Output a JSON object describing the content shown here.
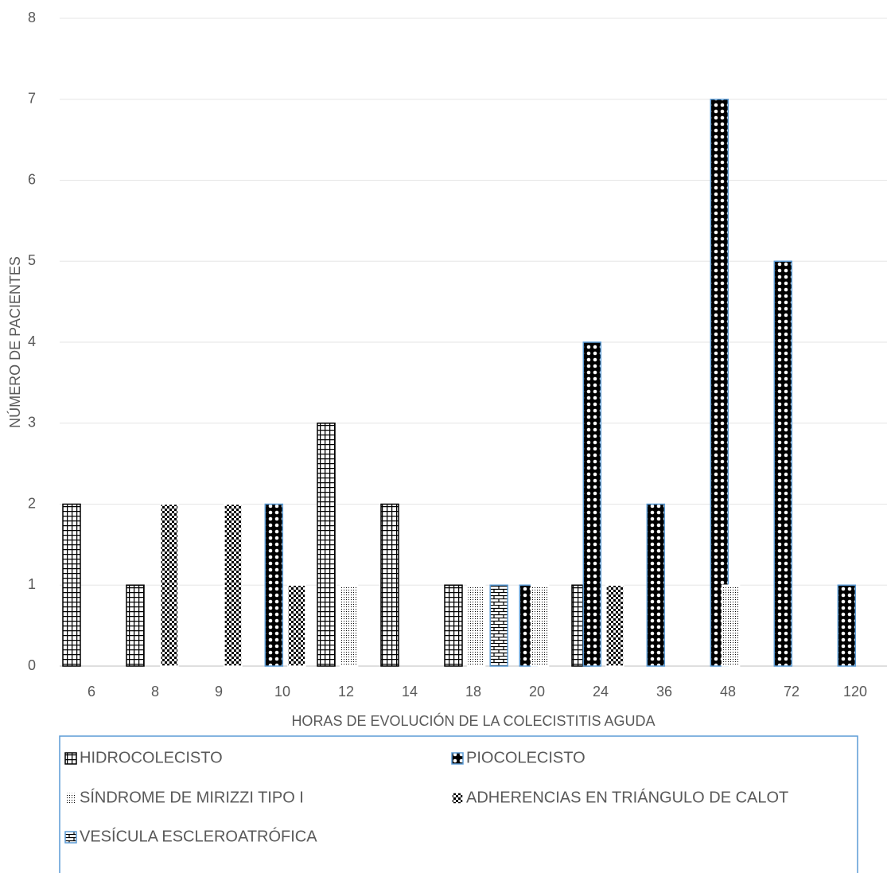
{
  "chart_data": {
    "type": "bar",
    "x_label": "HORAS DE EVOLUCIÓN DE LA COLECISTITIS AGUDA",
    "y_label": "NÚMERO DE PACIENTES",
    "categories": [
      "6",
      "8",
      "9",
      "10",
      "12",
      "14",
      "18",
      "20",
      "24",
      "36",
      "48",
      "72",
      "120"
    ],
    "series": [
      {
        "name": "HIDROCOLECISTO",
        "color": "#000000",
        "edgecolor": "#000000",
        "values": [
          2,
          1,
          0,
          0,
          3,
          2,
          1,
          0,
          1,
          0,
          0,
          0,
          0
        ]
      },
      {
        "name": "PIOCOLECISTO",
        "color": "#000000",
        "edgecolor": "#5b9bd5",
        "values": [
          0,
          0,
          0,
          2,
          0,
          0,
          0,
          1,
          4,
          2,
          7,
          5,
          1
        ]
      },
      {
        "name": "SÍNDROME DE MIRIZZI TIPO I",
        "color": "#000000",
        "edgecolor": "#ffffff",
        "values": [
          0,
          0,
          0,
          0,
          1,
          0,
          1,
          1,
          0,
          0,
          1,
          0,
          0
        ]
      },
      {
        "name": "ADHERENCIAS EN TRIÁNGULO DE CALOT",
        "color": "#000000",
        "edgecolor": "#ffffff",
        "values": [
          0,
          2,
          2,
          1,
          0,
          0,
          0,
          0,
          1,
          0,
          0,
          0,
          0
        ]
      },
      {
        "name": "VESÍCULA ESCLEROATRÓFICA",
        "color": "#000000",
        "edgecolor": "#5b9bd5",
        "values": [
          0,
          0,
          0,
          0,
          0,
          0,
          1,
          0,
          0,
          0,
          0,
          0,
          0
        ]
      }
    ],
    "ylim": [
      0,
      8
    ],
    "yticks": [
      0,
      1,
      2,
      3,
      4,
      5,
      6,
      7,
      8
    ],
    "grid": true,
    "legend": "bottom"
  }
}
